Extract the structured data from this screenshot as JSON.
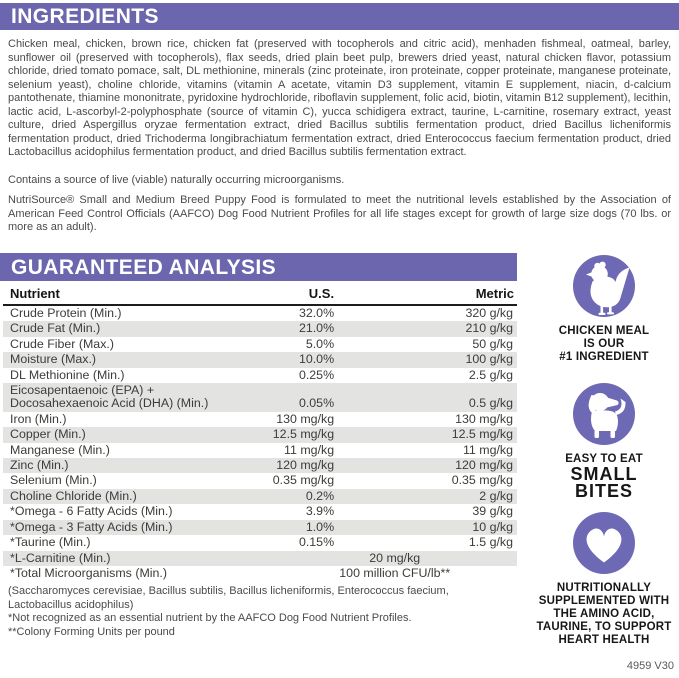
{
  "colors": {
    "header_bar": "#6B66AE",
    "icon_circle": "#6E69B4",
    "row_stripe": "#E3E3E2"
  },
  "ingredients_section": {
    "title": "INGREDIENTS",
    "paragraph": "Chicken meal, chicken, brown rice, chicken fat (preserved with tocopherols and citric acid), menhaden fishmeal, oatmeal, barley, sunflower oil (preserved with tocopherols), flax seeds, dried plain beet pulp, brewers dried yeast, natural chicken flavor, potassium chloride, dried tomato pomace, salt, DL methionine, minerals (zinc proteinate, iron proteinate, copper proteinate, manganese proteinate, selenium yeast), choline chloride, vitamins (vitamin A acetate, vitamin D3 supplement, vitamin E supplement, niacin, d-calcium pantothenate, thiamine mononitrate, pyridoxine hydrochloride, riboflavin supplement, folic acid, biotin, vitamin B12 supplement), lecithin, lactic acid, L-ascorbyl-2-polyphosphate (source of vitamin C), yucca schidigera extract, taurine, L-carnitine, rosemary extract, yeast culture, dried Aspergillus oryzae fermentation extract, dried Bacillus subtilis fermentation product, dried Bacillus licheniformis fermentation product, dried Trichoderma longibrachiatum fermentation extract, dried Enterococcus faecium fermentation product, dried Lactobacillus acidophilus fermentation product, and dried Bacillus subtilis fermentation extract.",
    "contains_note": "Contains a source of live (viable) naturally occurring microorganisms.",
    "aafco_statement": "NutriSource® Small and Medium Breed Puppy Food is formulated to meet the nutritional levels established by the Association of American Feed Control Officials (AAFCO) Dog Food Nutrient Profiles for all life stages except for growth of large size dogs (70 lbs. or more as an adult)."
  },
  "guaranteed_analysis": {
    "title": "GUARANTEED ANALYSIS",
    "columns": [
      "Nutrient",
      "U.S.",
      "Metric"
    ],
    "rows": [
      {
        "nutrient": "Crude Protein (Min.)",
        "us": "32.0%",
        "metric": "320 g/kg"
      },
      {
        "nutrient": "Crude Fat (Min.)",
        "us": "21.0%",
        "metric": "210 g/kg",
        "shade": true
      },
      {
        "nutrient": "Crude Fiber (Max.)",
        "us": "5.0%",
        "metric": "50 g/kg"
      },
      {
        "nutrient": "Moisture (Max.)",
        "us": "10.0%",
        "metric": "100 g/kg",
        "shade": true
      },
      {
        "nutrient": "DL Methionine (Min.)",
        "us": "0.25%",
        "metric": "2.5 g/kg"
      },
      {
        "nutrient": "Eicosapentaenoic (EPA) +\nDocosahexaenoic Acid (DHA) (Min.)",
        "us": "0.05%",
        "metric": "0.5 g/kg",
        "shade": true
      },
      {
        "nutrient": "Iron (Min.)",
        "us": "130 mg/kg",
        "metric": "130 mg/kg"
      },
      {
        "nutrient": "Copper (Min.)",
        "us": "12.5 mg/kg",
        "metric": "12.5 mg/kg",
        "shade": true
      },
      {
        "nutrient": "Manganese (Min.)",
        "us": "11 mg/kg",
        "metric": "11 mg/kg"
      },
      {
        "nutrient": "Zinc (Min.)",
        "us": "120 mg/kg",
        "metric": "120 mg/kg",
        "shade": true
      },
      {
        "nutrient": "Selenium (Min.)",
        "us": "0.35 mg/kg",
        "metric": "0.35 mg/kg"
      },
      {
        "nutrient": "Choline Chloride (Min.)",
        "us": "0.2%",
        "metric": "2 g/kg",
        "shade": true
      },
      {
        "nutrient": "*Omega - 6 Fatty Acids (Min.)",
        "us": "3.9%",
        "metric": "39 g/kg"
      },
      {
        "nutrient": "*Omega - 3 Fatty Acids (Min.)",
        "us": "1.0%",
        "metric": "10 g/kg",
        "shade": true
      },
      {
        "nutrient": "*Taurine (Min.)",
        "us": "0.15%",
        "metric": "1.5 g/kg"
      },
      {
        "nutrient": "*L-Carnitine (Min.)",
        "combined": "20 mg/kg",
        "shade": true
      },
      {
        "nutrient": "*Total Microorganisms (Min.)",
        "combined": "100 million CFU/lb**"
      }
    ],
    "footnotes": [
      "(Saccharomyces cerevisiae, Bacillus subtilis, Bacillus licheniformis, Enterococcus faecium, Lactobacillus acidophilus)",
      "*Not recognized as an essential nutrient by the AAFCO Dog Food Nutrient Profiles.",
      "**Colony Forming Units per pound"
    ]
  },
  "badges": [
    {
      "icon": "chicken-icon",
      "lines": [
        "CHICKEN MEAL",
        "IS OUR",
        "#1 INGREDIENT"
      ]
    },
    {
      "icon": "puppy-icon",
      "lines": [
        "EASY TO EAT",
        "SMALL",
        "BITES"
      ]
    },
    {
      "icon": "heart-icon",
      "lines": [
        "NUTRITIONALLY",
        "SUPPLEMENTED WITH",
        "THE AMINO ACID,",
        "TAURINE, TO SUPPORT",
        "HEART HEALTH"
      ]
    }
  ],
  "footer_code": "4959 V30"
}
